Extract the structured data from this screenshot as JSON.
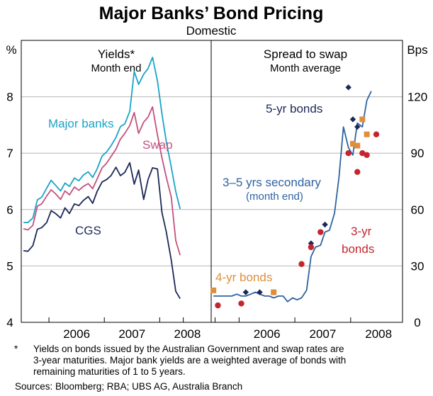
{
  "chart_data": {
    "type": "line",
    "title": "Major Banks’ Bond Pricing",
    "subtitle": "Domestic",
    "left_panel": {
      "title": "Yields*",
      "subtitle": "Month end",
      "axis_unit": "%",
      "ylim": [
        4,
        9
      ],
      "yticks": [
        "4",
        "5",
        "6",
        "7",
        "8"
      ],
      "xlim": [
        2005.5,
        2008.93
      ],
      "xticks": [
        "2006",
        "2007",
        "2008"
      ],
      "series": [
        {
          "name": "Major banks",
          "color": "#1aa3c8",
          "x": [
            2005.54,
            2005.62,
            2005.71,
            2005.79,
            2005.87,
            2005.96,
            2006.04,
            2006.12,
            2006.21,
            2006.29,
            2006.37,
            2006.46,
            2006.54,
            2006.62,
            2006.71,
            2006.79,
            2006.87,
            2006.96,
            2007.04,
            2007.12,
            2007.21,
            2007.29,
            2007.37,
            2007.46,
            2007.54,
            2007.62,
            2007.71,
            2007.79,
            2007.87,
            2007.96,
            2008.04,
            2008.12,
            2008.21,
            2008.29,
            2008.37
          ],
          "values": [
            5.77,
            5.77,
            5.85,
            6.17,
            6.22,
            6.38,
            6.52,
            6.43,
            6.33,
            6.47,
            6.41,
            6.56,
            6.51,
            6.61,
            6.67,
            6.57,
            6.72,
            6.95,
            7.02,
            7.13,
            7.28,
            7.47,
            7.52,
            7.74,
            8.45,
            8.22,
            8.4,
            8.5,
            8.7,
            8.28,
            7.7,
            7.2,
            6.75,
            6.32,
            6.01
          ]
        },
        {
          "name": "Swap",
          "color": "#c4507e",
          "x": [
            2005.54,
            2005.62,
            2005.71,
            2005.79,
            2005.87,
            2005.96,
            2006.04,
            2006.12,
            2006.21,
            2006.29,
            2006.37,
            2006.46,
            2006.54,
            2006.62,
            2006.71,
            2006.79,
            2006.87,
            2006.96,
            2007.04,
            2007.12,
            2007.21,
            2007.29,
            2007.37,
            2007.46,
            2007.54,
            2007.62,
            2007.71,
            2007.79,
            2007.87,
            2007.96,
            2008.04,
            2008.12,
            2008.21,
            2008.29,
            2008.37
          ],
          "values": [
            5.66,
            5.64,
            5.72,
            6.06,
            6.1,
            6.24,
            6.35,
            6.28,
            6.18,
            6.33,
            6.26,
            6.4,
            6.34,
            6.41,
            6.46,
            6.37,
            6.54,
            6.74,
            6.82,
            6.94,
            7.07,
            7.25,
            7.35,
            7.49,
            7.72,
            7.35,
            7.55,
            7.64,
            7.82,
            7.32,
            6.92,
            6.57,
            6.22,
            5.45,
            5.19
          ]
        },
        {
          "name": "CGS",
          "color": "#1c2857",
          "x": [
            2005.54,
            2005.62,
            2005.71,
            2005.79,
            2005.87,
            2005.96,
            2006.04,
            2006.12,
            2006.21,
            2006.29,
            2006.37,
            2006.46,
            2006.54,
            2006.62,
            2006.71,
            2006.79,
            2006.87,
            2006.96,
            2007.04,
            2007.12,
            2007.21,
            2007.29,
            2007.37,
            2007.46,
            2007.54,
            2007.62,
            2007.71,
            2007.79,
            2007.87,
            2007.96,
            2008.04,
            2008.12,
            2008.21,
            2008.29,
            2008.37
          ],
          "values": [
            5.27,
            5.26,
            5.36,
            5.65,
            5.68,
            5.77,
            5.98,
            5.93,
            5.85,
            6.03,
            5.93,
            6.1,
            6.07,
            6.16,
            6.23,
            6.11,
            6.32,
            6.49,
            6.53,
            6.6,
            6.75,
            6.6,
            6.66,
            6.83,
            6.45,
            6.7,
            6.18,
            6.53,
            6.74,
            6.72,
            5.95,
            5.6,
            5.1,
            4.55,
            4.42
          ]
        }
      ],
      "labels": [
        "Major banks",
        "Swap",
        "CGS"
      ]
    },
    "right_panel": {
      "title": "Spread to swap",
      "subtitle": "Month average",
      "axis_unit": "Bps",
      "ylim": [
        0,
        150
      ],
      "yticks": [
        "0",
        "30",
        "60",
        "90",
        "120"
      ],
      "xlim": [
        2005.5,
        2008.93
      ],
      "xticks": [
        "2006",
        "2007",
        "2008"
      ],
      "line": {
        "name": "3–5 yrs secondary",
        "label_line1": "3–5 yrs secondary",
        "label_line2": "(month end)",
        "color": "#2e63a0",
        "x": [
          2005.54,
          2005.62,
          2005.71,
          2005.79,
          2005.87,
          2005.96,
          2006.04,
          2006.12,
          2006.21,
          2006.29,
          2006.37,
          2006.46,
          2006.54,
          2006.62,
          2006.71,
          2006.79,
          2006.87,
          2006.96,
          2007.04,
          2007.12,
          2007.21,
          2007.29,
          2007.37,
          2007.46,
          2007.54,
          2007.62,
          2007.71,
          2007.79,
          2007.87,
          2007.96,
          2008.04,
          2008.12,
          2008.21,
          2008.29,
          2008.37
        ],
        "values": [
          14,
          14,
          14,
          14,
          14,
          15,
          14,
          14,
          15,
          16,
          15,
          14,
          14,
          13,
          14,
          14,
          11,
          13,
          12,
          13,
          17,
          35,
          40,
          41,
          48,
          49,
          58,
          77,
          104,
          93,
          89,
          106,
          104,
          118,
          123
        ]
      },
      "points": [
        {
          "name": "5-yr bonds",
          "marker": "diamond",
          "color": "#1c2857",
          "x": [
            2006.12,
            2006.37,
            2006.62,
            2007.29,
            2007.54,
            2007.96,
            2008.04,
            2008.12
          ],
          "values": [
            16,
            16,
            16,
            42,
            52,
            125,
            108,
            104
          ]
        },
        {
          "name": "4-yr bonds",
          "marker": "square",
          "color": "#e08e3c",
          "x": [
            2005.54,
            2006.62,
            2008.04,
            2008.12,
            2008.21,
            2008.29
          ],
          "values": [
            17,
            16,
            95,
            94,
            108,
            100
          ]
        },
        {
          "name": "3-yr bonds",
          "marker": "circle",
          "color": "#c4262e",
          "x": [
            2005.62,
            2006.04,
            2007.12,
            2007.29,
            2007.46,
            2007.96,
            2008.12,
            2008.21,
            2008.29,
            2008.46
          ],
          "values": [
            9,
            10,
            31,
            40,
            48,
            90,
            80,
            90,
            89,
            100
          ]
        }
      ],
      "labels": {
        "five_yr": "5-yr bonds",
        "four_yr": "4-yr bonds",
        "three_yr_line1": "3-yr",
        "three_yr_line2": "bonds"
      }
    }
  },
  "footnote": {
    "star": "*",
    "line1": "Yields on bonds issued by the Australian Government and swap rates are",
    "line2": "3-year maturities. Major bank yields are a weighted average of bonds with",
    "line3": "remaining maturities of 1 to 5 years.",
    "sources": "Sources: Bloomberg; RBA; UBS AG, Australia Branch"
  }
}
